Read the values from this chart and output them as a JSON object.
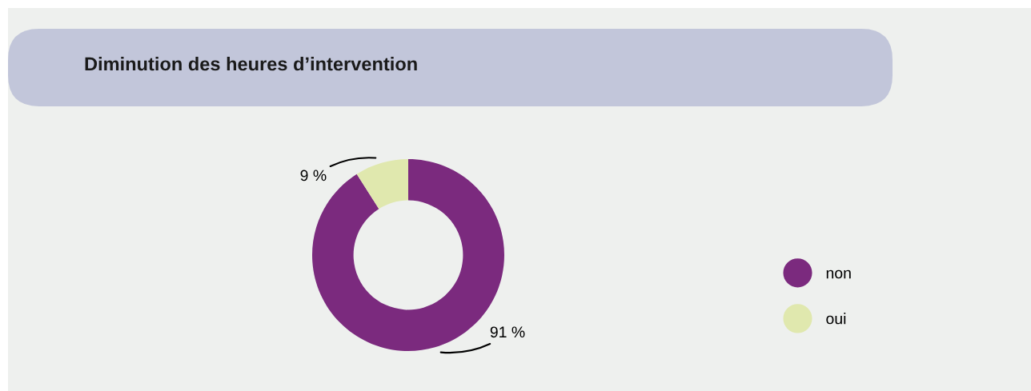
{
  "chart_data": {
    "type": "donut",
    "title": "Diminution des heures d’intervention",
    "categories": [
      "non",
      "oui"
    ],
    "values": [
      91,
      9
    ],
    "colors": [
      "#7b2a7e",
      "#e0e8ae"
    ],
    "value_labels": [
      "91 %",
      "9 %"
    ],
    "legend": "right"
  }
}
